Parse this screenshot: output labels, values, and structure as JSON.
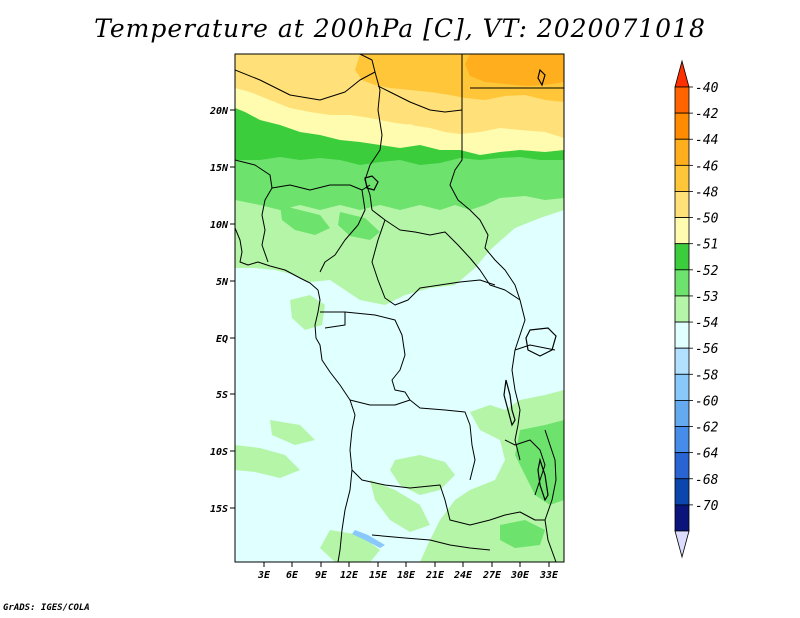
{
  "title": "Temperature at 200hPa [C], VT: 2020071018",
  "credit": "GrADS: IGES/COLA",
  "map": {
    "lat_range": [
      -20,
      24.5
    ],
    "lon_range": [
      0,
      34.5
    ],
    "lat_labels": [
      "20N",
      "15N",
      "10N",
      "5N",
      "EQ",
      "5S",
      "10S",
      "15S"
    ],
    "lon_labels": [
      "3E",
      "6E",
      "9E",
      "12E",
      "15E",
      "18E",
      "21E",
      "24E",
      "27E",
      "30E",
      "33E"
    ]
  },
  "colorbar": {
    "labels": [
      "-40",
      "-42",
      "-44",
      "-46",
      "-48",
      "-50",
      "-51",
      "-52",
      "-53",
      "-54",
      "-56",
      "-58",
      "-60",
      "-62",
      "-64",
      "-68",
      "-70"
    ],
    "colors": [
      "#ff3000",
      "#ff6400",
      "#ff8c00",
      "#ffaf1e",
      "#ffc63a",
      "#ffe079",
      "#fffcaf",
      "#3ccd3c",
      "#6de26d",
      "#b4f5a7",
      "#e0ffff",
      "#b2e1ff",
      "#89c8fa",
      "#64aaf0",
      "#468cea",
      "#2864d2",
      "#0a46ad",
      "#0a147a",
      "#dcdcff"
    ]
  }
}
